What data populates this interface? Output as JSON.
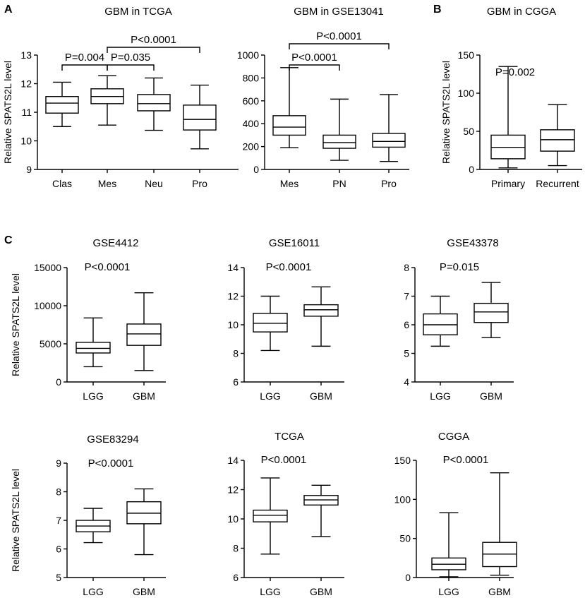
{
  "figure": {
    "panel_letters": [
      "A",
      "B",
      "C"
    ],
    "y_axis_label": "Relative SPATS2L level"
  },
  "chart_data": [
    {
      "type": "box",
      "panel": "A",
      "title": "GBM in TCGA",
      "ylabel": "Relative SPATS2L level",
      "ylim": [
        9,
        13
      ],
      "yticks": [
        9,
        10,
        11,
        12,
        13
      ],
      "categories": [
        "Clas",
        "Mes",
        "Neu",
        "Pro"
      ],
      "boxes": [
        {
          "min": 10.5,
          "q1": 10.97,
          "median": 11.32,
          "q3": 11.55,
          "max": 12.05
        },
        {
          "min": 10.55,
          "q1": 11.3,
          "median": 11.55,
          "q3": 11.82,
          "max": 12.28
        },
        {
          "min": 10.37,
          "q1": 11.05,
          "median": 11.3,
          "q3": 11.62,
          "max": 12.2
        },
        {
          "min": 9.72,
          "q1": 10.38,
          "median": 10.75,
          "q3": 11.25,
          "max": 11.95
        }
      ],
      "comparisons": [
        {
          "from": 0,
          "to": 1,
          "label": "P=0.004",
          "level": 0
        },
        {
          "from": 1,
          "to": 2,
          "label": "P=0.035",
          "level": 0
        },
        {
          "from": 1,
          "to": 3,
          "label": "P<0.0001",
          "level": 1
        }
      ]
    },
    {
      "type": "box",
      "panel": "A",
      "title": "GBM in GSE13041",
      "ylabel": "",
      "ylim": [
        0,
        1000
      ],
      "yticks": [
        0,
        200,
        400,
        600,
        800,
        1000
      ],
      "categories": [
        "Mes",
        "PN",
        "Pro"
      ],
      "boxes": [
        {
          "min": 190,
          "q1": 300,
          "median": 370,
          "q3": 470,
          "max": 890
        },
        {
          "min": 80,
          "q1": 185,
          "median": 235,
          "q3": 300,
          "max": 615
        },
        {
          "min": 70,
          "q1": 195,
          "median": 245,
          "q3": 315,
          "max": 655
        }
      ],
      "comparisons": [
        {
          "from": 0,
          "to": 1,
          "label": "P<0.0001",
          "level": 0
        },
        {
          "from": 0,
          "to": 2,
          "label": "P<0.0001",
          "level": 1
        }
      ]
    },
    {
      "type": "box",
      "panel": "B",
      "title": "GBM in CGGA",
      "ylabel": "Relative SPATS2L level",
      "ylim": [
        0,
        150
      ],
      "yticks": [
        0,
        50,
        100,
        150
      ],
      "categories": [
        "Primary",
        "Recurrent"
      ],
      "boxes": [
        {
          "min": 2,
          "q1": 14,
          "median": 29,
          "q3": 45,
          "max": 135
        },
        {
          "min": 5,
          "q1": 24,
          "median": 39,
          "q3": 52,
          "max": 85
        }
      ],
      "annotation": "P=0.002"
    },
    {
      "type": "box",
      "panel": "C",
      "title": "GSE4412",
      "ylabel": "Relative SPATS2L level",
      "ylim": [
        0,
        15000
      ],
      "yticks": [
        0,
        5000,
        10000,
        15000
      ],
      "categories": [
        "LGG",
        "GBM"
      ],
      "boxes": [
        {
          "min": 2000,
          "q1": 3800,
          "median": 4400,
          "q3": 5200,
          "max": 8400
        },
        {
          "min": 1500,
          "q1": 4800,
          "median": 6300,
          "q3": 7600,
          "max": 11700
        }
      ],
      "annotation": "P<0.0001"
    },
    {
      "type": "box",
      "panel": "C",
      "title": "GSE16011",
      "ylabel": "",
      "ylim": [
        6,
        14
      ],
      "yticks": [
        6,
        8,
        10,
        12,
        14
      ],
      "categories": [
        "LGG",
        "GBM"
      ],
      "boxes": [
        {
          "min": 8.2,
          "q1": 9.5,
          "median": 10.1,
          "q3": 10.8,
          "max": 12.0
        },
        {
          "min": 8.5,
          "q1": 10.6,
          "median": 11.05,
          "q3": 11.4,
          "max": 12.65
        }
      ],
      "annotation": "P<0.0001"
    },
    {
      "type": "box",
      "panel": "C",
      "title": "GSE43378",
      "ylabel": "",
      "ylim": [
        4,
        8
      ],
      "yticks": [
        4,
        5,
        6,
        7,
        8
      ],
      "categories": [
        "LGG",
        "GBM"
      ],
      "boxes": [
        {
          "min": 5.25,
          "q1": 5.65,
          "median": 6.0,
          "q3": 6.38,
          "max": 7.0
        },
        {
          "min": 5.55,
          "q1": 6.08,
          "median": 6.45,
          "q3": 6.75,
          "max": 7.48
        }
      ],
      "annotation": "P=0.015"
    },
    {
      "type": "box",
      "panel": "C",
      "title": "GSE83294",
      "ylabel": "Relative SPATS2L level",
      "ylim": [
        5,
        9
      ],
      "yticks": [
        5,
        6,
        7,
        8,
        9
      ],
      "categories": [
        "LGG",
        "GBM"
      ],
      "boxes": [
        {
          "min": 6.22,
          "q1": 6.6,
          "median": 6.8,
          "q3": 7.0,
          "max": 7.42
        },
        {
          "min": 5.8,
          "q1": 6.88,
          "median": 7.25,
          "q3": 7.65,
          "max": 8.1
        }
      ],
      "annotation": "P<0.0001"
    },
    {
      "type": "box",
      "panel": "C",
      "title": "TCGA",
      "ylabel": "",
      "ylim": [
        6,
        14
      ],
      "yticks": [
        6,
        8,
        10,
        12,
        14
      ],
      "categories": [
        "LGG",
        "GBM"
      ],
      "boxes": [
        {
          "min": 7.6,
          "q1": 9.8,
          "median": 10.25,
          "q3": 10.6,
          "max": 12.8
        },
        {
          "min": 8.8,
          "q1": 10.95,
          "median": 11.3,
          "q3": 11.6,
          "max": 12.3
        }
      ],
      "annotation": "P<0.0001"
    },
    {
      "type": "box",
      "panel": "C",
      "title": "CGGA",
      "ylabel": "",
      "ylim": [
        0,
        150
      ],
      "yticks": [
        0,
        50,
        100,
        150
      ],
      "categories": [
        "LGG",
        "GBM"
      ],
      "boxes": [
        {
          "min": 1,
          "q1": 10,
          "median": 17,
          "q3": 25,
          "max": 83
        },
        {
          "min": 3,
          "q1": 14,
          "median": 30,
          "q3": 45,
          "max": 134
        }
      ],
      "annotation": "P<0.0001"
    }
  ]
}
